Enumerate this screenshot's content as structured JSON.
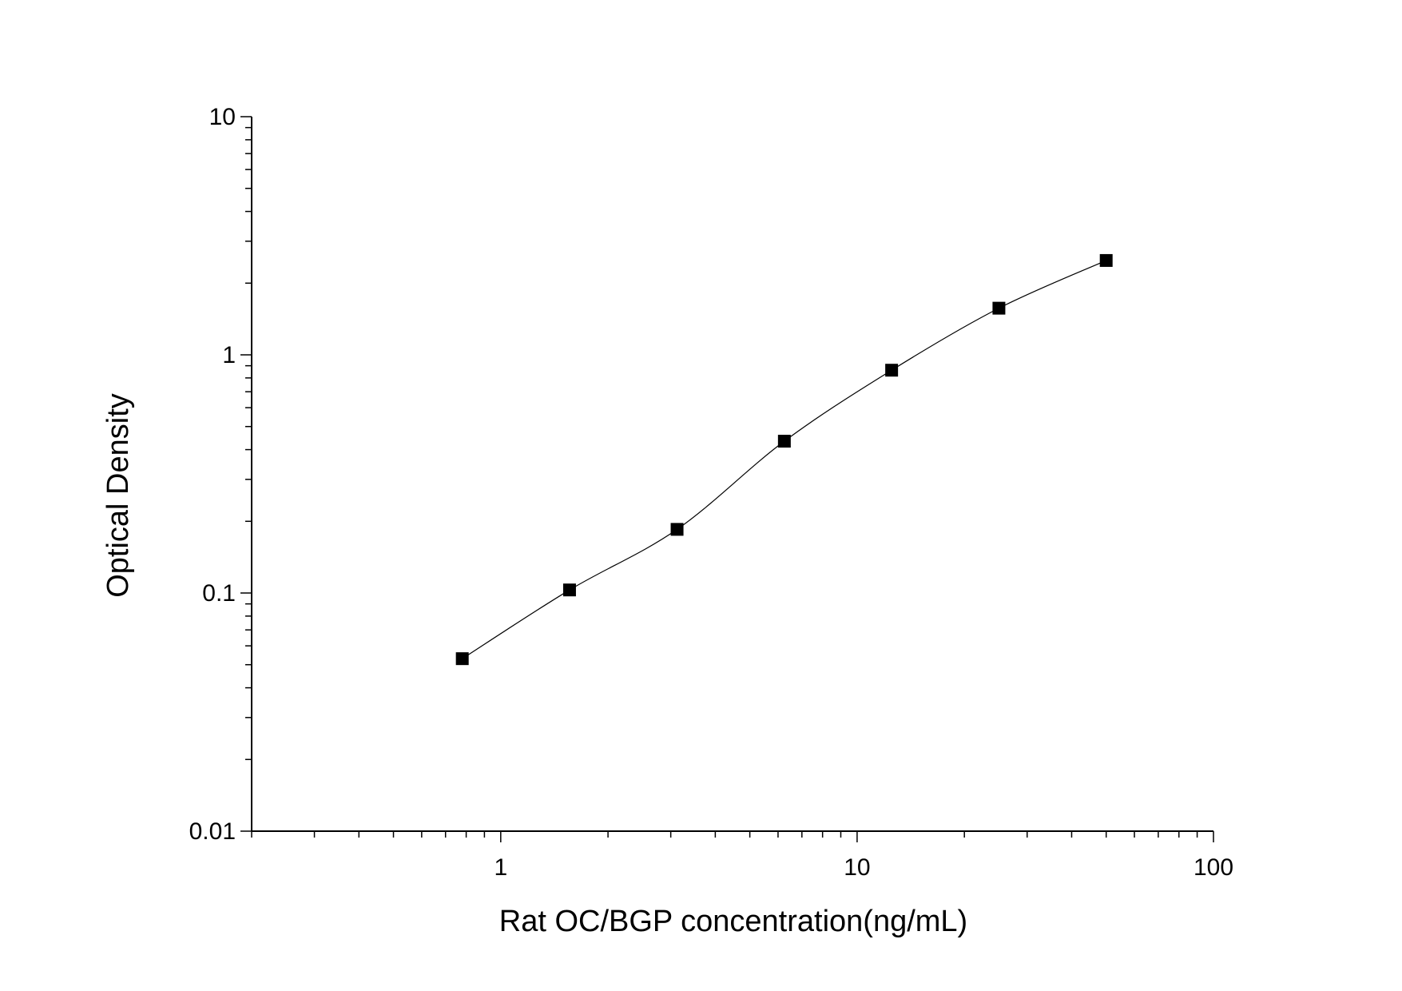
{
  "chart_data": {
    "type": "scatter",
    "title": "",
    "xlabel": "Rat OC/BGP concentration(ng/mL)",
    "ylabel": "Optical Density",
    "xscale": "log",
    "yscale": "log",
    "xlim": [
      0.2,
      100
    ],
    "ylim": [
      0.01,
      10
    ],
    "xticks": [
      {
        "v": 1,
        "label": "1"
      },
      {
        "v": 10,
        "label": "10"
      },
      {
        "v": 100,
        "label": "100"
      }
    ],
    "yticks": [
      {
        "v": 0.01,
        "label": "0.01"
      },
      {
        "v": 0.1,
        "label": "0.1"
      },
      {
        "v": 1,
        "label": "1"
      },
      {
        "v": 10,
        "label": "10"
      }
    ],
    "grid": false,
    "fit_curve": true,
    "marker": "square",
    "color": "#000000",
    "x": [
      0.78,
      1.56,
      3.125,
      6.25,
      12.5,
      25,
      50
    ],
    "y": [
      0.053,
      0.103,
      0.185,
      0.434,
      0.862,
      1.57,
      2.49
    ]
  }
}
